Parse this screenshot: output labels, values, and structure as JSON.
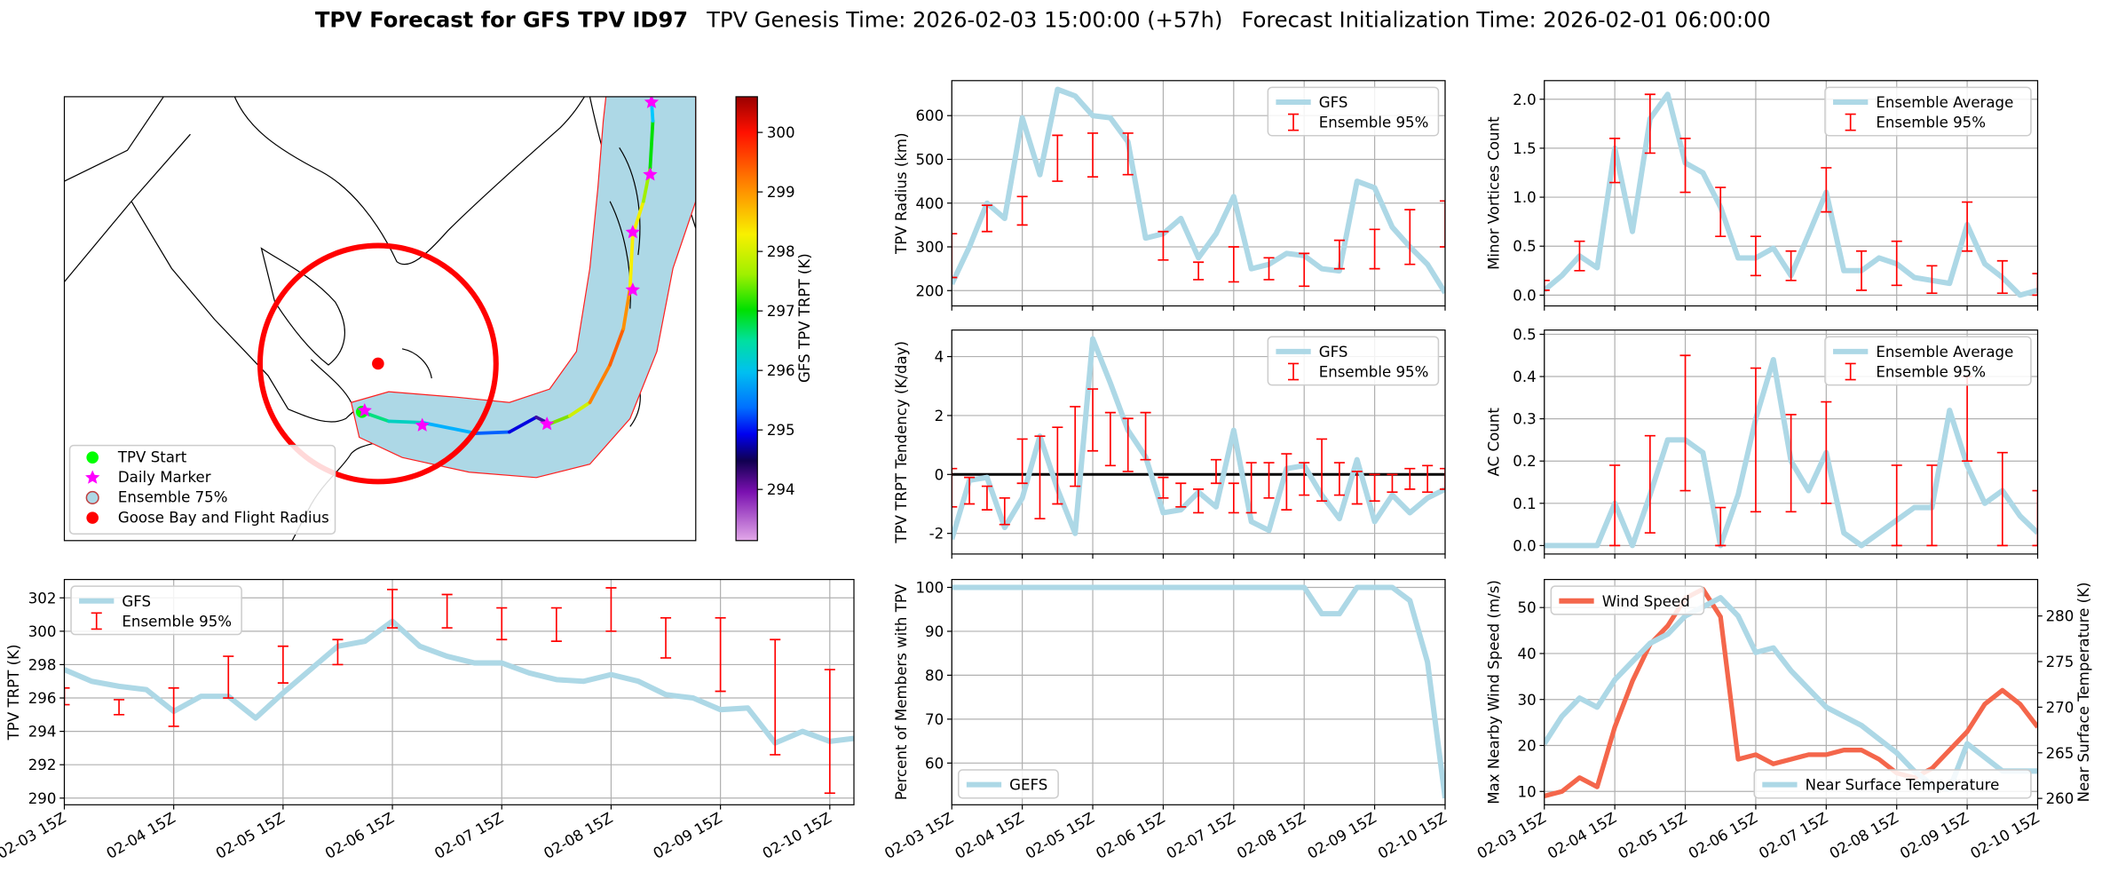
{
  "title": {
    "main": "TPV Forecast for GFS TPV ID97",
    "genesis": "TPV Genesis Time: 2026-02-03 15:00:00 (+57h)",
    "init": "Forecast Initialization Time: 2026-02-01 06:00:00"
  },
  "map": {
    "legend": [
      "TPV Start",
      "Daily Marker",
      "Ensemble 75%",
      "Goose Bay and Flight Radius"
    ],
    "colorbar": {
      "label": "GFS TPV TRPT (K)",
      "lim": [
        293.14,
        300.6
      ],
      "ticks": [
        294,
        295,
        296,
        297,
        298,
        299,
        300
      ]
    }
  },
  "chart_data": [
    {
      "type": "line",
      "ylabel": "TPV Radius (km)",
      "ylim": [
        165,
        680
      ],
      "yticks": [
        200,
        300,
        400,
        500,
        600
      ],
      "grid": true,
      "legend": "upper right",
      "series": [
        {
          "name": "GFS",
          "color": "#add8e6",
          "values": [
            215,
            300,
            400,
            365,
            595,
            465,
            660,
            645,
            600,
            595,
            540,
            320,
            330,
            365,
            275,
            330,
            415,
            250,
            260,
            285,
            280,
            250,
            245,
            450,
            435,
            345,
            300,
            260,
            195
          ]
        }
      ],
      "errorbars": {
        "name": "Ensemble 95%",
        "color": "#ff0000",
        "low": [
          230,
          null,
          335,
          null,
          350,
          null,
          450,
          null,
          460,
          null,
          465,
          null,
          270,
          null,
          225,
          null,
          220,
          null,
          225,
          null,
          210,
          null,
          250,
          null,
          250,
          null,
          260,
          null,
          300
        ],
        "high": [
          330,
          null,
          395,
          null,
          415,
          null,
          555,
          null,
          560,
          null,
          560,
          null,
          335,
          null,
          265,
          null,
          300,
          null,
          275,
          null,
          285,
          null,
          315,
          null,
          340,
          null,
          385,
          null,
          405
        ]
      }
    },
    {
      "type": "line",
      "ylabel": "Minor Vortices Count",
      "ylim": [
        -0.11,
        2.19
      ],
      "yticks": [
        {
          "value": 0,
          "label": "0.0"
        },
        {
          "value": 0.5,
          "label": "0.5"
        },
        {
          "value": 1,
          "label": "1.0"
        },
        {
          "value": 1.5,
          "label": "1.5"
        },
        {
          "value": 2,
          "label": "2.0"
        }
      ],
      "grid": true,
      "legend": "upper right",
      "series": [
        {
          "name": "Ensemble Average",
          "color": "#add8e6",
          "values": [
            0.05,
            0.2,
            0.4,
            0.28,
            1.5,
            0.65,
            1.8,
            2.05,
            1.35,
            1.25,
            0.9,
            0.38,
            0.38,
            0.48,
            0.2,
            0.62,
            1.05,
            0.25,
            0.25,
            0.38,
            0.32,
            0.18,
            0.15,
            0.12,
            0.72,
            0.32,
            0.18,
            0,
            0.05
          ]
        }
      ],
      "errorbars": {
        "name": "Ensemble 95%",
        "color": "#ff0000",
        "low": [
          0.05,
          null,
          0.25,
          null,
          1.15,
          null,
          1.45,
          null,
          1.05,
          null,
          0.6,
          null,
          0.2,
          null,
          0.15,
          null,
          0.85,
          null,
          0.05,
          null,
          0.1,
          null,
          0.02,
          null,
          0.45,
          null,
          0.02,
          null,
          0
        ],
        "high": [
          0.15,
          null,
          0.55,
          null,
          1.6,
          null,
          2.05,
          null,
          1.6,
          null,
          1.1,
          null,
          0.6,
          null,
          0.45,
          null,
          1.3,
          null,
          0.45,
          null,
          0.55,
          null,
          0.3,
          null,
          0.95,
          null,
          0.35,
          null,
          0.22
        ]
      }
    },
    {
      "type": "line",
      "ylabel": "TPV TRPT Tendency (K/day)",
      "ylim": [
        -2.7,
        4.9
      ],
      "yticks": [
        -2,
        0,
        2,
        4
      ],
      "grid": true,
      "legend": "upper right",
      "hline": 0,
      "series": [
        {
          "name": "GFS",
          "color": "#add8e6",
          "values": [
            -2.2,
            -0.2,
            -0.1,
            -1.8,
            -0.8,
            1.3,
            -0.5,
            -2.0,
            4.6,
            3.1,
            1.5,
            0.6,
            -1.3,
            -1.2,
            -0.6,
            -1.1,
            1.5,
            -1.6,
            -1.9,
            0.2,
            0.3,
            -0.7,
            -1.5,
            0.5,
            -1.6,
            -0.7,
            -1.3,
            -0.8,
            -0.5
          ]
        }
      ],
      "errorbars": {
        "name": "Ensemble 95%",
        "color": "#ff0000",
        "low": [
          -1.1,
          -1.0,
          -1.2,
          -1.7,
          -0.3,
          -1.5,
          -1.0,
          -0.4,
          0.8,
          0.3,
          0.1,
          0.5,
          -0.8,
          -1.1,
          -1.3,
          -0.3,
          -1.3,
          -1.3,
          -0.8,
          -1.2,
          -0.7,
          -0.9,
          -0.7,
          -1.0,
          -0.9,
          -0.6,
          -0.5,
          -0.6,
          -0.5
        ],
        "high": [
          0.2,
          -0.1,
          -0.4,
          -0.8,
          1.2,
          1.3,
          1.6,
          2.3,
          2.9,
          2.1,
          1.9,
          2.1,
          -0.1,
          -0.3,
          -0.5,
          0.5,
          -0.3,
          0.4,
          0.4,
          0.7,
          0.4,
          1.2,
          0.4,
          0.1,
          0,
          0,
          0.2,
          0.3,
          0.2
        ]
      }
    },
    {
      "type": "line",
      "ylabel": "AC Count",
      "ylim": [
        -0.02,
        0.51
      ],
      "yticks": [
        {
          "value": 0,
          "label": "0.0"
        },
        {
          "value": 0.1,
          "label": "0.1"
        },
        {
          "value": 0.2,
          "label": "0.2"
        },
        {
          "value": 0.3,
          "label": "0.3"
        },
        {
          "value": 0.4,
          "label": "0.4"
        },
        {
          "value": 0.5,
          "label": "0.5"
        }
      ],
      "grid": true,
      "legend": "upper right",
      "series": [
        {
          "name": "Ensemble Average",
          "color": "#add8e6",
          "values": [
            0,
            0,
            0,
            0,
            0.1,
            0,
            0.12,
            0.25,
            0.25,
            0.22,
            0,
            0.12,
            0.3,
            0.44,
            0.2,
            0.13,
            0.22,
            0.03,
            0,
            0.03,
            0.06,
            0.09,
            0.09,
            0.32,
            0.19,
            0.1,
            0.13,
            0.07,
            0.03
          ]
        }
      ],
      "errorbars": {
        "name": "Ensemble 95%",
        "color": "#ff0000",
        "low": [
          null,
          null,
          null,
          null,
          0,
          null,
          0.03,
          null,
          0.13,
          null,
          0,
          null,
          0.08,
          null,
          0.08,
          null,
          0.1,
          null,
          null,
          null,
          0,
          null,
          0,
          null,
          0.2,
          null,
          0,
          null,
          0
        ],
        "high": [
          null,
          null,
          null,
          null,
          0.19,
          null,
          0.26,
          null,
          0.45,
          null,
          0.09,
          null,
          0.42,
          null,
          0.31,
          null,
          0.34,
          null,
          null,
          null,
          0.19,
          null,
          0.19,
          null,
          0.4,
          null,
          0.22,
          null,
          0.13
        ]
      }
    },
    {
      "type": "line",
      "ylabel": "TPV TRPT (K)",
      "ylim": [
        289.6,
        303.1
      ],
      "yticks": [
        290,
        292,
        294,
        296,
        298,
        300,
        302
      ],
      "grid": true,
      "legend": "upper left",
      "categories": [
        "02-03 15Z",
        null,
        null,
        null,
        "02-04 15Z",
        null,
        null,
        null,
        "02-05 15Z",
        null,
        null,
        null,
        "02-06 15Z",
        null,
        null,
        null,
        "02-07 15Z",
        null,
        null,
        null,
        "02-08 15Z",
        null,
        null,
        null,
        "02-09 15Z",
        null,
        null,
        null,
        "02-10 15Z",
        null
      ],
      "series": [
        {
          "name": "GFS",
          "color": "#add8e6",
          "values": [
            297.7,
            297.0,
            296.7,
            296.5,
            295.2,
            296.1,
            296.1,
            294.8,
            296.3,
            297.7,
            299.1,
            299.4,
            300.6,
            299.1,
            298.5,
            298.1,
            298.1,
            297.5,
            297.1,
            297.0,
            297.4,
            297.0,
            296.2,
            296.0,
            295.3,
            295.4,
            293.3,
            294.0,
            293.4,
            293.6
          ]
        }
      ],
      "errorbars": {
        "name": "Ensemble 95%",
        "color": "#ff0000",
        "low": [
          295.6,
          null,
          295.0,
          null,
          294.3,
          null,
          296.0,
          null,
          296.9,
          null,
          298.0,
          null,
          300.2,
          null,
          300.2,
          null,
          299.5,
          null,
          299.4,
          null,
          300.0,
          null,
          298.4,
          null,
          296.4,
          null,
          292.6,
          null,
          290.3,
          null
        ],
        "high": [
          296.6,
          null,
          295.9,
          null,
          296.6,
          null,
          298.5,
          null,
          299.1,
          null,
          299.5,
          null,
          302.5,
          null,
          302.2,
          null,
          301.4,
          null,
          301.4,
          null,
          302.6,
          null,
          300.8,
          null,
          300.8,
          null,
          299.5,
          null,
          297.7,
          null
        ]
      }
    },
    {
      "type": "line",
      "ylabel": "Percent of Members with TPV",
      "ylim": [
        50.5,
        101.8
      ],
      "yticks": [
        60,
        70,
        80,
        90,
        100
      ],
      "grid": true,
      "legend": "lower left",
      "categories": [
        "02-03 15Z",
        null,
        null,
        null,
        "02-04 15Z",
        null,
        null,
        null,
        "02-05 15Z",
        null,
        null,
        null,
        "02-06 15Z",
        null,
        null,
        null,
        "02-07 15Z",
        null,
        null,
        null,
        "02-08 15Z",
        null,
        null,
        null,
        "02-09 15Z",
        null,
        null,
        null,
        "02-10 15Z"
      ],
      "series": [
        {
          "name": "GEFS",
          "color": "#add8e6",
          "values": [
            100,
            100,
            100,
            100,
            100,
            100,
            100,
            100,
            100,
            100,
            100,
            100,
            100,
            100,
            100,
            100,
            100,
            100,
            100,
            100,
            100,
            94,
            94,
            100,
            100,
            100,
            97,
            83,
            52
          ]
        }
      ]
    },
    {
      "type": "line",
      "ylabel": "Max Nearby Wind Speed (m/s)",
      "ylabel_color": "#f4664b",
      "y2label": "Near Surface Temperature (K)",
      "y2label_color": "#4169e1",
      "ylim": [
        7.1,
        56.1
      ],
      "yticks": [
        10,
        20,
        30,
        40,
        50
      ],
      "y2lim": [
        259.3,
        284
      ],
      "y2ticks": [
        260,
        265,
        270,
        275,
        280
      ],
      "grid": true,
      "categories": [
        "02-03 15Z",
        null,
        null,
        null,
        "02-04 15Z",
        null,
        null,
        null,
        "02-05 15Z",
        null,
        null,
        null,
        "02-06 15Z",
        null,
        null,
        null,
        "02-07 15Z",
        null,
        null,
        null,
        "02-08 15Z",
        null,
        null,
        null,
        "02-09 15Z",
        null,
        null,
        null,
        "02-10 15Z"
      ],
      "series": [
        {
          "name": "Wind Speed",
          "color": "#f4664b",
          "legend": "upper left",
          "values": [
            9,
            10,
            13,
            11,
            24,
            34,
            42,
            46,
            52,
            54,
            48,
            17,
            18,
            16,
            17,
            18,
            18,
            19,
            19,
            17,
            14,
            13,
            15,
            19,
            23,
            29,
            32,
            29,
            24
          ]
        },
        {
          "name": "Near Surface Temperature",
          "color": "#add8e6",
          "axis": "y2",
          "legend": "lower right",
          "values": [
            266,
            269,
            271,
            270,
            273,
            275,
            277,
            278,
            280,
            281,
            282,
            280,
            276,
            276.5,
            274,
            272,
            270,
            269,
            268,
            266.5,
            265,
            263,
            261.5,
            261,
            266,
            264.5,
            263,
            263,
            263
          ]
        }
      ]
    }
  ]
}
